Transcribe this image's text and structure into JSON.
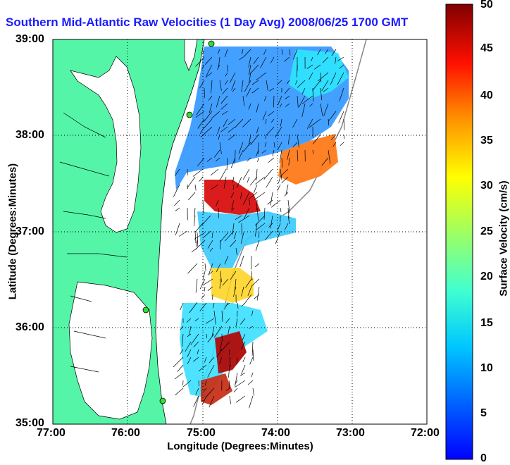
{
  "title": "Southern Mid-Atlantic Raw Velocities (1 Day Avg) 2008/06/25 1700 GMT",
  "map": {
    "x_axis_label": "Longitude (Degrees:Minutes)",
    "y_axis_label": "Latitude (Degrees:Minutes)",
    "x_ticks": [
      "77:00",
      "76:00",
      "75:00",
      "74:00",
      "73:00",
      "72:00"
    ],
    "y_ticks": [
      "39:00",
      "38:00",
      "37:00",
      "36:00",
      "35:00"
    ],
    "lon_range": [
      -77,
      -72
    ],
    "lat_range": [
      35,
      39
    ],
    "grid": true,
    "land_color": "#55f5a8",
    "water_color": "#ffffff"
  },
  "colorbar": {
    "label": "Surface Velocity (cm/s)",
    "ticks": [
      "50",
      "45",
      "40",
      "35",
      "30",
      "25",
      "20",
      "15",
      "10",
      "5",
      "0"
    ],
    "range": [
      0,
      50
    ],
    "colormap": "jet"
  }
}
